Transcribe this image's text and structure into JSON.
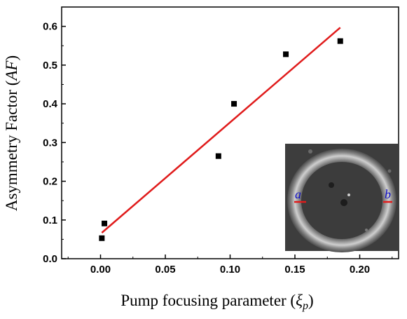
{
  "chart_data": {
    "type": "scatter",
    "xlabel": "Pump focusing parameter (",
    "xlabel_math": "ξ",
    "xlabel_sub": "p",
    "xlabel_close": ")",
    "ylabel": "Asymmetry Factor (",
    "ylabel_math": "AF",
    "ylabel_close": ")",
    "xlim": [
      -0.03,
      0.23
    ],
    "ylim": [
      0.0,
      0.65
    ],
    "x_ticks": [
      "0.00",
      "0.05",
      "0.10",
      "0.15",
      "0.20"
    ],
    "y_ticks": [
      "0.0",
      "0.1",
      "0.2",
      "0.3",
      "0.4",
      "0.5",
      "0.6"
    ],
    "series": [
      {
        "marker": "square",
        "color": "#000000",
        "points": [
          {
            "x": 0.001,
            "y": 0.053
          },
          {
            "x": 0.003,
            "y": 0.091
          },
          {
            "x": 0.091,
            "y": 0.265
          },
          {
            "x": 0.103,
            "y": 0.4
          },
          {
            "x": 0.143,
            "y": 0.528
          },
          {
            "x": 0.185,
            "y": 0.562
          }
        ]
      }
    ],
    "fit_line": {
      "color": "#e01b1b",
      "x": [
        0.001,
        0.185
      ],
      "y": [
        0.067,
        0.597
      ]
    },
    "grid": false,
    "inset": {
      "description_labels": [
        "a",
        "b"
      ],
      "marker_color": "#e01b1b"
    }
  }
}
